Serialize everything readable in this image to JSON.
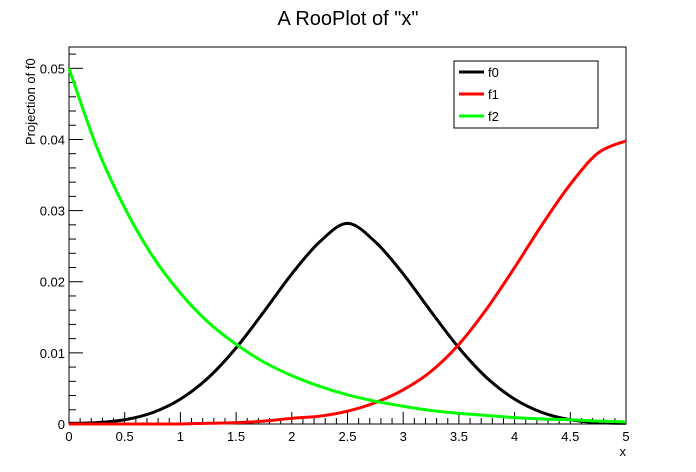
{
  "chart_data": {
    "type": "line",
    "title": "A RooPlot of \"x\"",
    "xlabel": "x",
    "ylabel": "Projection of f0",
    "xlim": [
      0,
      5
    ],
    "ylim": [
      0,
      0.053
    ],
    "grid": false,
    "legend_position": "top-right",
    "x_ticks": [
      0,
      0.5,
      1,
      1.5,
      2,
      2.5,
      3,
      3.5,
      4,
      4.5,
      5
    ],
    "x_tick_labels": [
      "0",
      "0.5",
      "1",
      "1.5",
      "2",
      "2.5",
      "3",
      "3.5",
      "4",
      "4.5",
      "5"
    ],
    "y_ticks": [
      0,
      0.01,
      0.02,
      0.03,
      0.04,
      0.05
    ],
    "y_tick_labels": [
      "0",
      "0.01",
      "0.02",
      "0.03",
      "0.04",
      "0.05"
    ],
    "x": [
      0,
      0.25,
      0.5,
      0.75,
      1,
      1.25,
      1.5,
      1.75,
      2,
      2.25,
      2.5,
      2.75,
      3,
      3.25,
      3.5,
      3.75,
      4,
      4.25,
      4.5,
      4.75,
      5
    ],
    "series": [
      {
        "name": "f0",
        "color": "#000000",
        "values": [
          0.0001,
          0.0002,
          0.0006,
          0.0016,
          0.0035,
          0.0065,
          0.0107,
          0.0158,
          0.0211,
          0.0256,
          0.0282,
          0.0256,
          0.0211,
          0.0158,
          0.0107,
          0.0065,
          0.0035,
          0.0016,
          0.0006,
          0.0002,
          0.0001
        ]
      },
      {
        "name": "f1",
        "color": "#ff0000",
        "values": [
          0.0,
          0.0,
          0.0,
          0.0,
          0.0,
          0.0001,
          0.0002,
          0.0004,
          0.0008,
          0.0011,
          0.0018,
          0.003,
          0.0048,
          0.0074,
          0.0112,
          0.0162,
          0.022,
          0.0281,
          0.0337,
          0.0381,
          0.0398
        ]
      },
      {
        "name": "f2",
        "color": "#00ff00",
        "values": [
          0.05,
          0.0389,
          0.0304,
          0.0236,
          0.0184,
          0.0143,
          0.0112,
          0.0087,
          0.0068,
          0.0053,
          0.0041,
          0.0032,
          0.0025,
          0.0019,
          0.0015,
          0.0012,
          0.0009,
          0.0007,
          0.0006,
          0.0004,
          0.0003
        ]
      }
    ]
  }
}
